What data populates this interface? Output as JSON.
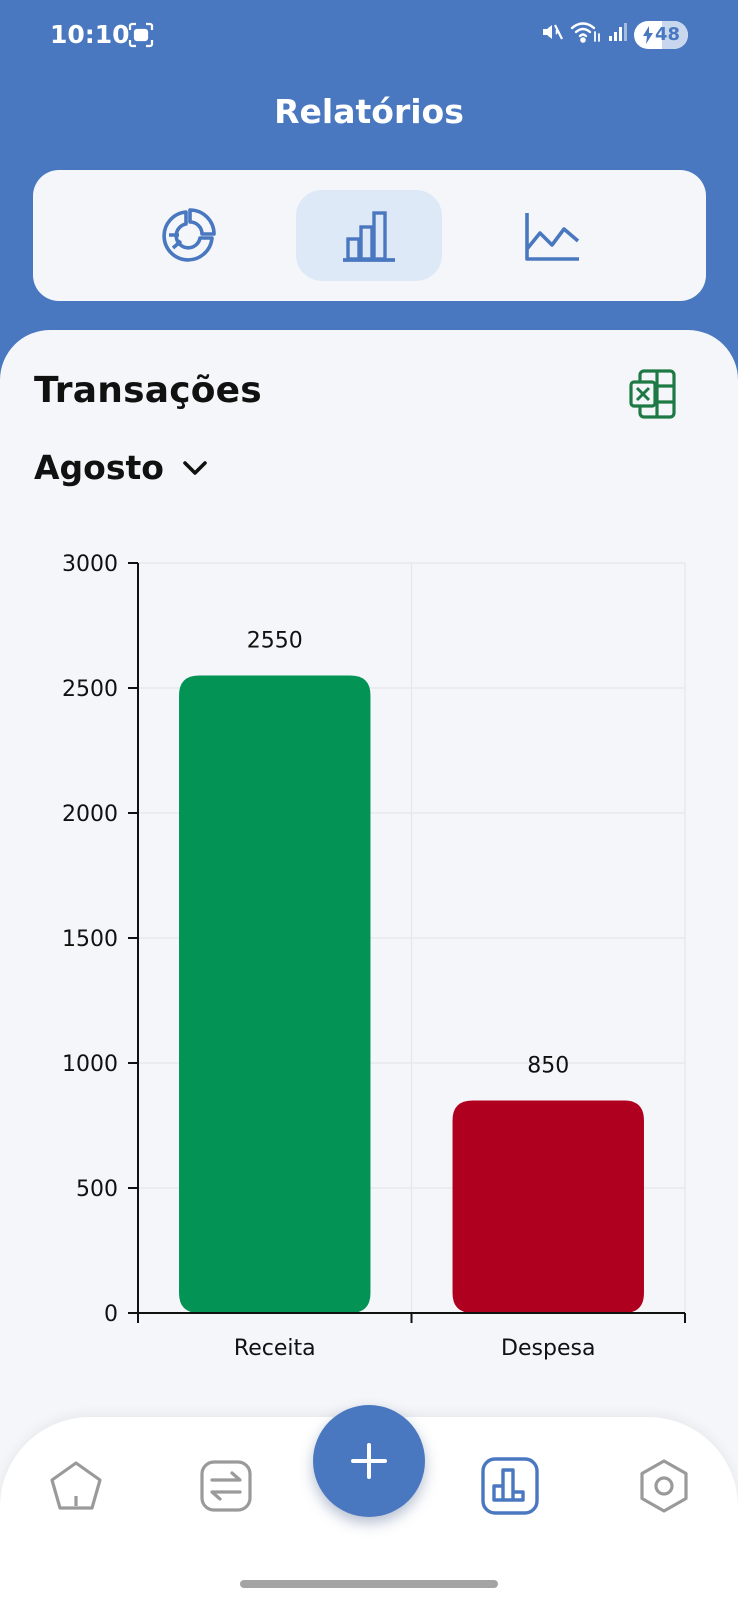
{
  "status": {
    "time": "10:10",
    "battery": "48",
    "wifi_badge": "5"
  },
  "header": {
    "title": "Relatórios"
  },
  "chart_types": [
    {
      "name": "pie",
      "icon": "pie-chart-icon",
      "active": false
    },
    {
      "name": "bar",
      "icon": "bar-chart-icon",
      "active": true
    },
    {
      "name": "line",
      "icon": "line-chart-icon",
      "active": false
    }
  ],
  "section": {
    "title": "Transações",
    "export_icon": "excel-icon"
  },
  "filter": {
    "month": "Agosto"
  },
  "chart_data": {
    "type": "bar",
    "categories": [
      "Receita",
      "Despesa"
    ],
    "values": [
      2550,
      850
    ],
    "colors": [
      "#039355",
      "#b00020"
    ],
    "ylim": [
      0,
      3000
    ],
    "yticks": [
      0,
      500,
      1000,
      1500,
      2000,
      2500,
      3000
    ],
    "data_labels": true,
    "grid": true
  },
  "nav": {
    "items": [
      "home-icon",
      "transactions-icon",
      "add-icon",
      "reports-icon",
      "settings-icon"
    ],
    "active": "reports-icon"
  },
  "colors": {
    "primary": "#4a78c0",
    "income": "#039355",
    "expense": "#b00020",
    "background": "#f4f6f9"
  }
}
